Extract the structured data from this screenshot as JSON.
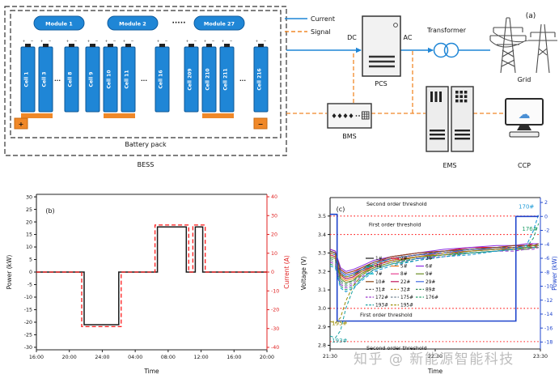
{
  "watermark": "知乎 @ 新能源智能科技",
  "panel_a": {
    "label": "(a)",
    "legend": {
      "current": "Current",
      "signal": "Signal"
    },
    "bess": "BESS",
    "battery_pack": "Battery pack",
    "modules": [
      "Module 1",
      "Module 2",
      "Module 27"
    ],
    "module_ellipsis": "·····",
    "cell_ellipsis": "···",
    "cell_groups": [
      [
        "Cell 1",
        "Cell 3",
        "Cell 8"
      ],
      [
        "Cell 9",
        "Cell 10",
        "Cell 11",
        "Cell 16"
      ],
      [
        "Cell 209",
        "Cell 210",
        "Cell 211",
        "Cell 216"
      ]
    ],
    "cell_plus": "+",
    "cell_minus": "−",
    "terminal_plus": "+",
    "terminal_minus": "−",
    "dc": "DC",
    "ac": "AC",
    "pcs": "PCS",
    "transformer": "Transformer",
    "grid": "Grid",
    "bms": "BMS",
    "ems": "EMS",
    "ccp": "CCP",
    "icons": {
      "cloud": "☁"
    }
  },
  "chart_data": [
    {
      "type": "line",
      "panel_label": "(b)",
      "xlabel": "Time",
      "grid": false,
      "xlim": [
        0,
        28
      ],
      "x_tick_values": [
        0,
        4,
        8,
        12,
        16,
        20,
        24,
        28
      ],
      "x_tick_labels": [
        "16:00",
        "20:00",
        "24:00",
        "04:00",
        "08:00",
        "12:00",
        "16:00",
        "20:00"
      ],
      "left_axis": {
        "label": "Power (kW)",
        "color": "#111111",
        "lim": [
          31,
          -31
        ],
        "ticks": [
          "30",
          "25",
          "20",
          "15",
          "10",
          "5",
          "0",
          "-5",
          "-10",
          "-15",
          "-20",
          "-25",
          "-30"
        ]
      },
      "right_axis": {
        "label": "Current (A)",
        "color": "#e02020",
        "lim": [
          41.3,
          -41.3
        ],
        "ticks": [
          "40",
          "30",
          "20",
          "10",
          "0",
          "-10",
          "-20",
          "-30",
          "-40"
        ]
      },
      "series": [
        {
          "name": "Power",
          "axis": "left",
          "color": "#1a1a1a",
          "width": 1.5,
          "x": [
            0,
            5.8,
            5.8,
            10,
            10,
            14.7,
            14.7,
            18.2,
            18.2,
            19.3,
            19.3,
            20.2,
            20.2,
            28
          ],
          "y": [
            0,
            0,
            -21,
            -21,
            0,
            0,
            18,
            18,
            0,
            0,
            18,
            18,
            0,
            0
          ]
        },
        {
          "name": "Current",
          "axis": "right",
          "color": "#ff1a1a",
          "dash": "5 3",
          "width": 1.3,
          "x": [
            0,
            5.5,
            5.5,
            10.3,
            10.3,
            14.4,
            14.4,
            18.5,
            18.5,
            19.0,
            19.0,
            20.5,
            20.5,
            28
          ],
          "y": [
            0,
            0,
            -29,
            -29,
            0,
            0,
            25,
            25,
            0,
            0,
            25,
            25,
            0,
            0
          ]
        }
      ]
    },
    {
      "type": "line",
      "panel_label": "(c)",
      "xlabel": "Time",
      "grid": false,
      "xlim": [
        0,
        120
      ],
      "x_tick_values": [
        0,
        60,
        120
      ],
      "x_tick_labels": [
        "21:30",
        "22:30",
        "23:30"
      ],
      "left_axis": {
        "label": "Voltage (V)",
        "color": "#111111",
        "lim": [
          3.6,
          2.78
        ],
        "ticks": [
          "3.5",
          "3.4",
          "3.3",
          "3.2",
          "3.1",
          "3.0",
          "2.9",
          "2.8"
        ]
      },
      "right_axis": {
        "label": "Power (kW)",
        "color": "#1f44cc",
        "lim": [
          2.7,
          -19.0
        ],
        "ticks": [
          "2",
          "0",
          "-2",
          "-4",
          "-6",
          "-8",
          "-10",
          "-12",
          "-14",
          "-16",
          "-18"
        ]
      },
      "thresholds": [
        {
          "value": 3.5,
          "label": "Second order threshold",
          "label_x": 38,
          "label_dy": -13
        },
        {
          "value": 3.4,
          "label": "First order threshold",
          "label_x": 37,
          "label_dy": -10
        },
        {
          "value": 3.0,
          "label": "First order threshold",
          "label_x": 32,
          "label_dy": 10
        },
        {
          "value": 2.82,
          "label": "Second order threshold",
          "label_x": 38,
          "label_dy": 10
        }
      ],
      "annotations": [
        {
          "text": "170#",
          "x": 112,
          "y": 3.54,
          "color": "#1f9bd7"
        },
        {
          "text": "176#",
          "x": 114,
          "y": 3.42,
          "color": "#22a06b"
        },
        {
          "text": "195#",
          "x": 1,
          "y": 2.91,
          "color": "#9a8a00",
          "anchor": "start"
        },
        {
          "text": "193#",
          "x": 1,
          "y": 2.815,
          "color": "#18a0a0",
          "anchor": "start"
        }
      ],
      "legend": {
        "position": "inside-center-left",
        "items": [
          "1#",
          "2#",
          "3#",
          "4#",
          "5#",
          "6#",
          "7#",
          "8#",
          "9#",
          "10#",
          "22#",
          "29#",
          "31#",
          "32#",
          "89#",
          "172#",
          "175#",
          "176#",
          "193#",
          "195#"
        ]
      },
      "x_shared": [
        0,
        3,
        6,
        9,
        13,
        18,
        25,
        35,
        50,
        65,
        80,
        95,
        105,
        112,
        116,
        119
      ],
      "series": [
        {
          "name": "1#",
          "axis": "left",
          "color": "#1a1a1a",
          "width": 1,
          "y": [
            3.31,
            3.3,
            3.19,
            3.17,
            3.18,
            3.21,
            3.24,
            3.27,
            3.29,
            3.3,
            3.32,
            3.33,
            3.33,
            3.34,
            3.34,
            3.34
          ]
        },
        {
          "name": "2#",
          "axis": "left",
          "color": "#e60012",
          "width": 1,
          "y": [
            3.32,
            3.31,
            3.21,
            3.19,
            3.2,
            3.22,
            3.25,
            3.28,
            3.3,
            3.31,
            3.33,
            3.33,
            3.34,
            3.34,
            3.35,
            3.35
          ]
        },
        {
          "name": "3#",
          "axis": "left",
          "color": "#2457c5",
          "width": 1,
          "y": [
            3.3,
            3.29,
            3.18,
            3.16,
            3.17,
            3.2,
            3.23,
            3.26,
            3.28,
            3.29,
            3.31,
            3.32,
            3.32,
            3.33,
            3.33,
            3.33
          ]
        },
        {
          "name": "4#",
          "axis": "left",
          "color": "#00a04e",
          "width": 1,
          "y": [
            3.31,
            3.3,
            3.2,
            3.18,
            3.19,
            3.21,
            3.24,
            3.27,
            3.29,
            3.31,
            3.32,
            3.33,
            3.33,
            3.34,
            3.34,
            3.34
          ]
        },
        {
          "name": "5#",
          "axis": "left",
          "color": "#ef7c1b",
          "width": 1,
          "y": [
            3.29,
            3.28,
            3.17,
            3.15,
            3.16,
            3.19,
            3.23,
            3.26,
            3.28,
            3.29,
            3.3,
            3.31,
            3.32,
            3.32,
            3.33,
            3.33
          ]
        },
        {
          "name": "6#",
          "axis": "left",
          "color": "#8a2be2",
          "width": 1,
          "y": [
            3.32,
            3.31,
            3.22,
            3.2,
            3.21,
            3.23,
            3.26,
            3.28,
            3.3,
            3.32,
            3.33,
            3.34,
            3.34,
            3.35,
            3.35,
            3.35
          ]
        },
        {
          "name": "7#",
          "axis": "left",
          "color": "#00b7c3",
          "width": 1,
          "y": [
            3.3,
            3.29,
            3.19,
            3.17,
            3.18,
            3.2,
            3.24,
            3.27,
            3.29,
            3.3,
            3.31,
            3.32,
            3.33,
            3.33,
            3.34,
            3.34
          ]
        },
        {
          "name": "8#",
          "axis": "left",
          "color": "#e84393",
          "width": 1,
          "y": [
            3.31,
            3.3,
            3.2,
            3.18,
            3.19,
            3.22,
            3.25,
            3.27,
            3.29,
            3.31,
            3.32,
            3.33,
            3.33,
            3.34,
            3.34,
            3.34
          ]
        },
        {
          "name": "9#",
          "axis": "left",
          "color": "#6b8e23",
          "width": 1,
          "y": [
            3.28,
            3.27,
            3.16,
            3.14,
            3.15,
            3.19,
            3.22,
            3.25,
            3.28,
            3.29,
            3.3,
            3.31,
            3.32,
            3.32,
            3.33,
            3.33
          ]
        },
        {
          "name": "10#",
          "axis": "left",
          "color": "#8b4513",
          "width": 1,
          "y": [
            3.31,
            3.3,
            3.21,
            3.19,
            3.2,
            3.22,
            3.25,
            3.28,
            3.3,
            3.31,
            3.32,
            3.33,
            3.34,
            3.34,
            3.34,
            3.35
          ]
        },
        {
          "name": "22#",
          "axis": "left",
          "color": "#c2185b",
          "width": 1,
          "y": [
            3.29,
            3.28,
            3.18,
            3.16,
            3.17,
            3.2,
            3.23,
            3.26,
            3.28,
            3.3,
            3.31,
            3.32,
            3.32,
            3.33,
            3.33,
            3.34
          ]
        },
        {
          "name": "29#",
          "axis": "left",
          "color": "#4169e1",
          "width": 1,
          "y": [
            3.3,
            3.29,
            3.2,
            3.18,
            3.19,
            3.21,
            3.24,
            3.27,
            3.29,
            3.3,
            3.32,
            3.32,
            3.33,
            3.33,
            3.34,
            3.34
          ]
        },
        {
          "name": "31#",
          "axis": "left",
          "color": "#555555",
          "width": 1,
          "dash": "4 2.5",
          "y": [
            3.31,
            3.3,
            3.19,
            3.17,
            3.18,
            3.21,
            3.25,
            3.27,
            3.29,
            3.31,
            3.32,
            3.33,
            3.33,
            3.34,
            3.34,
            3.34
          ]
        },
        {
          "name": "32#",
          "axis": "left",
          "color": "#b8860b",
          "width": 1,
          "dash": "4 2.5",
          "y": [
            3.3,
            3.29,
            3.18,
            3.17,
            3.18,
            3.2,
            3.24,
            3.26,
            3.28,
            3.3,
            3.31,
            3.32,
            3.33,
            3.33,
            3.34,
            3.34
          ]
        },
        {
          "name": "89#",
          "axis": "left",
          "color": "#2e8b57",
          "width": 1,
          "dash": "4 2.5",
          "y": [
            3.27,
            3.26,
            3.15,
            3.13,
            3.15,
            3.18,
            3.22,
            3.25,
            3.27,
            3.29,
            3.3,
            3.31,
            3.32,
            3.32,
            3.33,
            3.33
          ]
        },
        {
          "name": "172#",
          "axis": "left",
          "color": "#9932cc",
          "width": 1,
          "dash": "4 2.5",
          "y": [
            3.25,
            3.24,
            3.13,
            3.11,
            3.13,
            3.17,
            3.21,
            3.24,
            3.27,
            3.28,
            3.3,
            3.31,
            3.31,
            3.32,
            3.32,
            3.33
          ]
        },
        {
          "name": "175#",
          "axis": "left",
          "color": "#708090",
          "width": 1,
          "dash": "4 2.5",
          "y": [
            3.26,
            3.25,
            3.14,
            3.12,
            3.14,
            3.18,
            3.22,
            3.25,
            3.27,
            3.29,
            3.3,
            3.31,
            3.32,
            3.32,
            3.33,
            3.33
          ]
        },
        {
          "name": "176#",
          "axis": "left",
          "color": "#22a06b",
          "width": 1,
          "dash": "4 2.5",
          "y": [
            3.24,
            3.23,
            3.12,
            3.1,
            3.12,
            3.16,
            3.21,
            3.24,
            3.26,
            3.28,
            3.3,
            3.31,
            3.32,
            3.33,
            3.38,
            3.46
          ]
        },
        {
          "name": "193#",
          "axis": "left",
          "color": "#18a0a0",
          "width": 1,
          "dash": "4 2.5",
          "y": [
            2.85,
            2.84,
            2.88,
            3.0,
            3.1,
            3.16,
            3.21,
            3.24,
            3.27,
            3.29,
            3.3,
            3.31,
            3.32,
            3.33,
            3.33,
            3.34
          ]
        },
        {
          "name": "195#",
          "axis": "left",
          "color": "#9a8a00",
          "width": 1,
          "dash": "4 2.5",
          "y": [
            2.93,
            2.92,
            2.95,
            3.04,
            3.12,
            3.18,
            3.22,
            3.25,
            3.28,
            3.29,
            3.31,
            3.32,
            3.32,
            3.33,
            3.34,
            3.34
          ]
        },
        {
          "name": "170#",
          "axis": "left",
          "color": "#1f9bd7",
          "width": 1.1,
          "dash": "4 2.5",
          "y": [
            3.23,
            3.22,
            3.11,
            3.09,
            3.11,
            3.15,
            3.2,
            3.23,
            3.26,
            3.28,
            3.29,
            3.31,
            3.32,
            3.34,
            3.42,
            3.51
          ]
        },
        {
          "name": "Power",
          "axis": "right",
          "color": "#1f44cc",
          "width": 1.6,
          "x": [
            0,
            4,
            4,
            106,
            106,
            119
          ],
          "y": [
            0.3,
            0.3,
            -15,
            -15,
            0,
            0
          ]
        }
      ]
    }
  ]
}
